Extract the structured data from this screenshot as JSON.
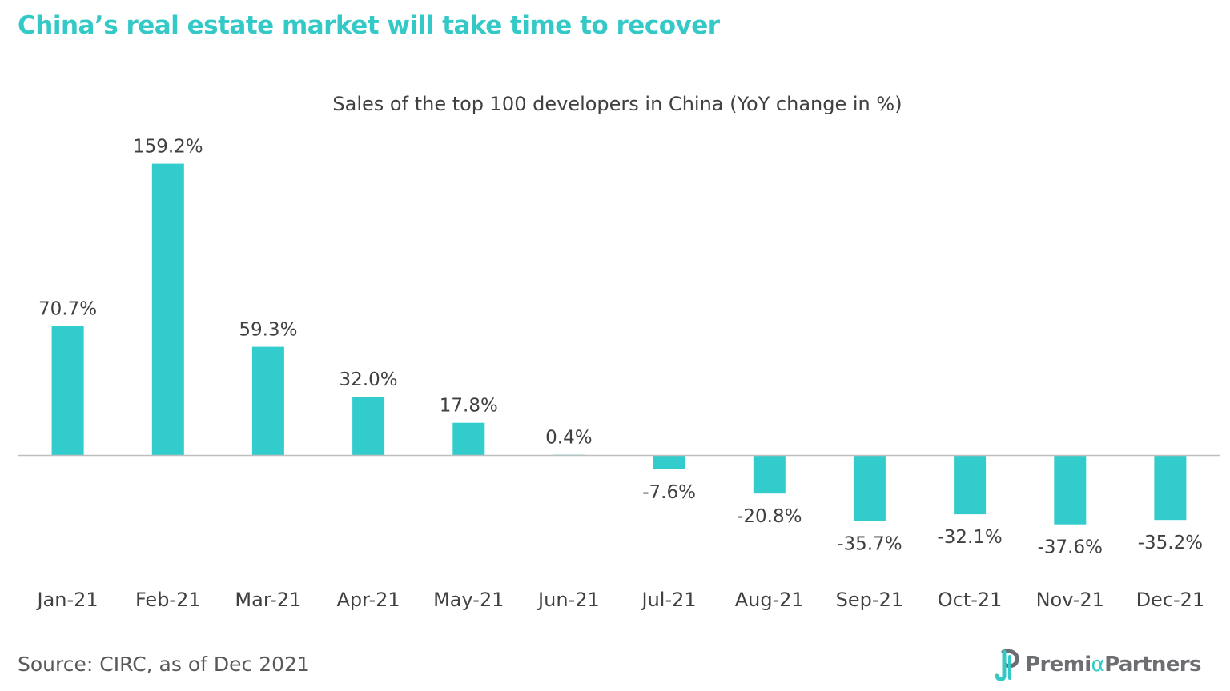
{
  "headline": "China’s real estate market will take time to recover",
  "source": "Source: CIRC, as of Dec 2021",
  "logo": {
    "part1": "Premi",
    "accent": "α",
    "part2": "Partners"
  },
  "colors": {
    "bar": "#33cccc",
    "headline": "#33c9c6",
    "axis": "#bfbfbf",
    "text": "#404040",
    "logo_gray": "#6d6e71"
  },
  "chart_data": {
    "type": "bar",
    "title": "Sales of the top 100 developers in China (YoY change in %)",
    "xlabel": "",
    "ylabel": "",
    "categories": [
      "Jan-21",
      "Feb-21",
      "Mar-21",
      "Apr-21",
      "May-21",
      "Jun-21",
      "Jul-21",
      "Aug-21",
      "Sep-21",
      "Oct-21",
      "Nov-21",
      "Dec-21"
    ],
    "values": [
      70.7,
      159.2,
      59.3,
      32.0,
      17.8,
      0.4,
      -7.6,
      -20.8,
      -35.7,
      -32.1,
      -37.6,
      -35.2
    ],
    "data_labels": [
      "70.7%",
      "159.2%",
      "59.3%",
      "32.0%",
      "17.8%",
      "0.4%",
      "-7.6%",
      "-20.8%",
      "-35.7%",
      "-32.1%",
      "-37.6%",
      "-35.2%"
    ],
    "ylim": [
      -40,
      160
    ],
    "grid": false,
    "legend": "none",
    "y_axis_visible": false
  }
}
